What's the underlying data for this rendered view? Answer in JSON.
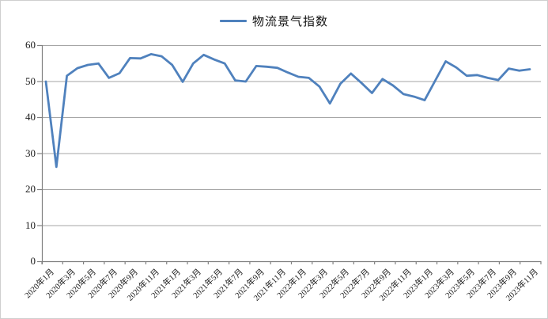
{
  "legend": {
    "label": "物流景气指数",
    "line_color": "#4F81BD"
  },
  "colors": {
    "series_line": "#4F81BD",
    "gridline": "#a6a6a6",
    "axis": "#808080",
    "label_text": "#1a1a1a"
  },
  "chart_data": {
    "type": "line",
    "title": "物流景气指数",
    "xlabel": "",
    "ylabel": "",
    "ylim": [
      0,
      60
    ],
    "yticks": [
      0,
      10,
      20,
      30,
      40,
      50,
      60
    ],
    "grid": "horizontal",
    "legend_position": "top-center",
    "xtick_label_every": 2,
    "x": [
      "2020年1月",
      "2020年2月",
      "2020年3月",
      "2020年4月",
      "2020年5月",
      "2020年6月",
      "2020年7月",
      "2020年8月",
      "2020年9月",
      "2020年10月",
      "2020年11月",
      "2020年12月",
      "2021年1月",
      "2021年2月",
      "2021年3月",
      "2021年4月",
      "2021年5月",
      "2021年6月",
      "2021年7月",
      "2021年8月",
      "2021年9月",
      "2021年10月",
      "2021年11月",
      "2021年12月",
      "2022年1月",
      "2022年2月",
      "2022年3月",
      "2022年4月",
      "2022年5月",
      "2022年6月",
      "2022年7月",
      "2022年8月",
      "2022年9月",
      "2022年10月",
      "2022年11月",
      "2022年12月",
      "2023年1月",
      "2023年2月",
      "2023年3月",
      "2023年4月",
      "2023年5月",
      "2023年6月",
      "2023年7月",
      "2023年8月",
      "2023年9月",
      "2023年10月",
      "2023年11月"
    ],
    "series": [
      {
        "name": "物流景气指数",
        "color": "#4F81BD",
        "values": [
          49.9,
          26.2,
          51.5,
          53.6,
          54.5,
          54.9,
          50.9,
          52.2,
          56.4,
          56.3,
          57.5,
          56.9,
          54.5,
          49.8,
          54.9,
          57.3,
          56.0,
          54.9,
          50.2,
          49.9,
          54.2,
          54.0,
          53.7,
          52.4,
          51.2,
          50.9,
          48.5,
          43.8,
          49.3,
          52.1,
          49.5,
          46.7,
          50.6,
          48.8,
          46.4,
          45.7,
          44.7,
          50.1,
          55.5,
          53.8,
          51.5,
          51.7,
          50.9,
          50.3,
          53.5,
          52.9,
          53.3
        ]
      }
    ]
  }
}
